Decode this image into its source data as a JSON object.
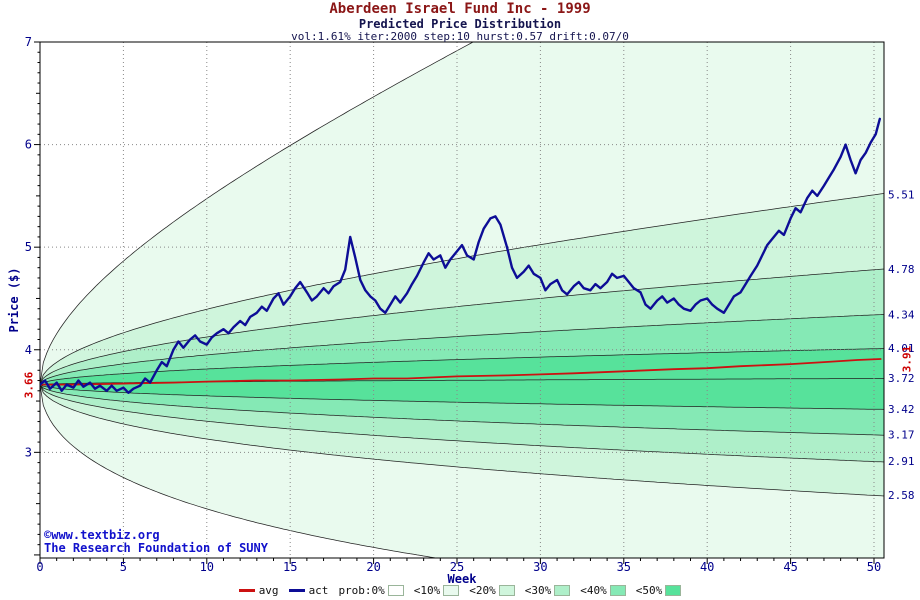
{
  "title": "Aberdeen Israel Fund Inc - 1999",
  "subtitle": "Predicted Price Distribution",
  "params_line": "vol:1.61% iter:2000 step:10 hurst:0.57 drift:0.07/0",
  "watermark": {
    "line1": "©www.textbiz.org",
    "line2": "The Research Foundation of SUNY"
  },
  "chart_data": {
    "type": "line",
    "title": "Aberdeen Israel Fund Inc - 1999",
    "subtitle": "Predicted Price Distribution",
    "xlabel": "Week",
    "ylabel": "Price ($)",
    "xlim": [
      0,
      50.6
    ],
    "ylim": [
      1.97,
      7.0
    ],
    "x_ticks": [
      0,
      5,
      10,
      15,
      20,
      25,
      30,
      35,
      40,
      45,
      50
    ],
    "y_ticks": [
      3,
      4,
      5,
      6,
      7
    ],
    "grid": "dotted",
    "start_price": 3.66,
    "start_label": "3.66",
    "avg_end_value": 3.91,
    "avg_end_label": "3.91",
    "fan": {
      "start": 3.66,
      "growth_exponent": 0.5,
      "boundaries": [
        {
          "name": "max",
          "end": 9.0,
          "label": ""
        },
        {
          "name": "p90",
          "end": 5.51,
          "label": "5.51"
        },
        {
          "name": "p80",
          "end": 4.78,
          "label": "4.78"
        },
        {
          "name": "p70",
          "end": 4.34,
          "label": "4.34"
        },
        {
          "name": "p60",
          "end": 4.01,
          "label": "4.01"
        },
        {
          "name": "p50",
          "end": 3.72,
          "label": "3.72"
        },
        {
          "name": "p40",
          "end": 3.42,
          "label": "3.42"
        },
        {
          "name": "p30",
          "end": 3.17,
          "label": "3.17"
        },
        {
          "name": "p20",
          "end": 2.91,
          "label": "2.91"
        },
        {
          "name": "p10",
          "end": 2.58,
          "label": "2.58"
        },
        {
          "name": "min",
          "end": 1.49,
          "label": ""
        }
      ],
      "band_fills": [
        "#e9faee",
        "#cff5dc",
        "#aeefc9",
        "#85e9b5",
        "#57e29b",
        "#57e29b",
        "#85e9b5",
        "#aeefc9",
        "#cff5dc",
        "#e9faee"
      ]
    },
    "series": [
      {
        "name": "avg",
        "color": "#cc1111",
        "width": 1.8,
        "points": [
          [
            0,
            3.66
          ],
          [
            2,
            3.66
          ],
          [
            5,
            3.67
          ],
          [
            8,
            3.68
          ],
          [
            10,
            3.69
          ],
          [
            13,
            3.7
          ],
          [
            15,
            3.7
          ],
          [
            18,
            3.71
          ],
          [
            20,
            3.72
          ],
          [
            22,
            3.72
          ],
          [
            25,
            3.74
          ],
          [
            28,
            3.75
          ],
          [
            30,
            3.76
          ],
          [
            32,
            3.77
          ],
          [
            35,
            3.79
          ],
          [
            38,
            3.81
          ],
          [
            40,
            3.82
          ],
          [
            42,
            3.84
          ],
          [
            45,
            3.86
          ],
          [
            47,
            3.88
          ],
          [
            49,
            3.9
          ],
          [
            50.4,
            3.91
          ]
        ]
      },
      {
        "name": "act",
        "color": "#0d0d96",
        "width": 2.4,
        "points": [
          [
            0,
            3.66
          ],
          [
            0.3,
            3.7
          ],
          [
            0.6,
            3.62
          ],
          [
            1,
            3.68
          ],
          [
            1.3,
            3.6
          ],
          [
            1.6,
            3.66
          ],
          [
            2,
            3.63
          ],
          [
            2.3,
            3.7
          ],
          [
            2.6,
            3.64
          ],
          [
            3,
            3.68
          ],
          [
            3.3,
            3.62
          ],
          [
            3.6,
            3.65
          ],
          [
            4,
            3.6
          ],
          [
            4.3,
            3.65
          ],
          [
            4.6,
            3.6
          ],
          [
            5,
            3.63
          ],
          [
            5.3,
            3.58
          ],
          [
            5.6,
            3.62
          ],
          [
            6,
            3.65
          ],
          [
            6.3,
            3.72
          ],
          [
            6.6,
            3.68
          ],
          [
            7,
            3.8
          ],
          [
            7.3,
            3.88
          ],
          [
            7.6,
            3.84
          ],
          [
            8,
            4.0
          ],
          [
            8.3,
            4.08
          ],
          [
            8.6,
            4.02
          ],
          [
            9,
            4.1
          ],
          [
            9.3,
            4.14
          ],
          [
            9.6,
            4.08
          ],
          [
            10,
            4.05
          ],
          [
            10.3,
            4.12
          ],
          [
            10.6,
            4.16
          ],
          [
            11,
            4.2
          ],
          [
            11.3,
            4.16
          ],
          [
            11.6,
            4.22
          ],
          [
            12,
            4.28
          ],
          [
            12.3,
            4.24
          ],
          [
            12.6,
            4.32
          ],
          [
            13,
            4.36
          ],
          [
            13.3,
            4.42
          ],
          [
            13.6,
            4.38
          ],
          [
            14,
            4.5
          ],
          [
            14.3,
            4.55
          ],
          [
            14.6,
            4.44
          ],
          [
            15,
            4.52
          ],
          [
            15.3,
            4.6
          ],
          [
            15.6,
            4.66
          ],
          [
            16,
            4.56
          ],
          [
            16.3,
            4.48
          ],
          [
            16.6,
            4.52
          ],
          [
            17,
            4.6
          ],
          [
            17.3,
            4.55
          ],
          [
            17.6,
            4.62
          ],
          [
            18,
            4.66
          ],
          [
            18.3,
            4.78
          ],
          [
            18.6,
            5.1
          ],
          [
            18.9,
            4.9
          ],
          [
            19.2,
            4.68
          ],
          [
            19.5,
            4.58
          ],
          [
            19.8,
            4.52
          ],
          [
            20.1,
            4.48
          ],
          [
            20.4,
            4.4
          ],
          [
            20.7,
            4.36
          ],
          [
            21,
            4.44
          ],
          [
            21.3,
            4.52
          ],
          [
            21.6,
            4.46
          ],
          [
            22,
            4.55
          ],
          [
            22.3,
            4.64
          ],
          [
            22.6,
            4.72
          ],
          [
            23,
            4.85
          ],
          [
            23.3,
            4.94
          ],
          [
            23.6,
            4.88
          ],
          [
            24,
            4.92
          ],
          [
            24.3,
            4.8
          ],
          [
            24.6,
            4.88
          ],
          [
            25,
            4.96
          ],
          [
            25.3,
            5.02
          ],
          [
            25.6,
            4.92
          ],
          [
            26,
            4.88
          ],
          [
            26.3,
            5.05
          ],
          [
            26.6,
            5.18
          ],
          [
            27,
            5.28
          ],
          [
            27.3,
            5.3
          ],
          [
            27.6,
            5.22
          ],
          [
            28,
            5.0
          ],
          [
            28.3,
            4.8
          ],
          [
            28.6,
            4.7
          ],
          [
            29,
            4.76
          ],
          [
            29.3,
            4.82
          ],
          [
            29.6,
            4.74
          ],
          [
            30,
            4.7
          ],
          [
            30.3,
            4.58
          ],
          [
            30.6,
            4.64
          ],
          [
            31,
            4.68
          ],
          [
            31.3,
            4.58
          ],
          [
            31.6,
            4.54
          ],
          [
            32,
            4.62
          ],
          [
            32.3,
            4.66
          ],
          [
            32.6,
            4.6
          ],
          [
            33,
            4.58
          ],
          [
            33.3,
            4.64
          ],
          [
            33.6,
            4.6
          ],
          [
            34,
            4.66
          ],
          [
            34.3,
            4.74
          ],
          [
            34.6,
            4.7
          ],
          [
            35,
            4.72
          ],
          [
            35.3,
            4.66
          ],
          [
            35.6,
            4.6
          ],
          [
            36,
            4.56
          ],
          [
            36.3,
            4.44
          ],
          [
            36.6,
            4.4
          ],
          [
            37,
            4.48
          ],
          [
            37.3,
            4.52
          ],
          [
            37.6,
            4.46
          ],
          [
            38,
            4.5
          ],
          [
            38.3,
            4.44
          ],
          [
            38.6,
            4.4
          ],
          [
            39,
            4.38
          ],
          [
            39.3,
            4.44
          ],
          [
            39.6,
            4.48
          ],
          [
            40,
            4.5
          ],
          [
            40.3,
            4.44
          ],
          [
            40.6,
            4.4
          ],
          [
            41,
            4.36
          ],
          [
            41.3,
            4.44
          ],
          [
            41.6,
            4.52
          ],
          [
            42,
            4.56
          ],
          [
            42.3,
            4.64
          ],
          [
            42.6,
            4.72
          ],
          [
            43,
            4.82
          ],
          [
            43.3,
            4.92
          ],
          [
            43.6,
            5.02
          ],
          [
            44,
            5.1
          ],
          [
            44.3,
            5.16
          ],
          [
            44.6,
            5.12
          ],
          [
            45,
            5.28
          ],
          [
            45.3,
            5.38
          ],
          [
            45.6,
            5.34
          ],
          [
            46,
            5.48
          ],
          [
            46.3,
            5.55
          ],
          [
            46.6,
            5.5
          ],
          [
            47,
            5.6
          ],
          [
            47.3,
            5.68
          ],
          [
            47.6,
            5.76
          ],
          [
            48,
            5.88
          ],
          [
            48.3,
            6.0
          ],
          [
            48.6,
            5.85
          ],
          [
            48.9,
            5.72
          ],
          [
            49.2,
            5.85
          ],
          [
            49.5,
            5.92
          ],
          [
            49.8,
            6.02
          ],
          [
            50.1,
            6.1
          ],
          [
            50.35,
            6.25
          ]
        ]
      }
    ],
    "legend": [
      {
        "label": "avg",
        "type": "line",
        "color": "#cc1111"
      },
      {
        "label": "act",
        "type": "line",
        "color": "#0d0d96"
      },
      {
        "label": "prob:0%",
        "type": "swatch",
        "color": "#ffffff"
      },
      {
        "label": "<10%",
        "type": "swatch",
        "color": "#e9faee"
      },
      {
        "label": "<20%",
        "type": "swatch",
        "color": "#cff5dc"
      },
      {
        "label": "<30%",
        "type": "swatch",
        "color": "#aeefc9"
      },
      {
        "label": "<40%",
        "type": "swatch",
        "color": "#85e9b5"
      },
      {
        "label": "<50%",
        "type": "swatch",
        "color": "#57e29b"
      }
    ]
  }
}
